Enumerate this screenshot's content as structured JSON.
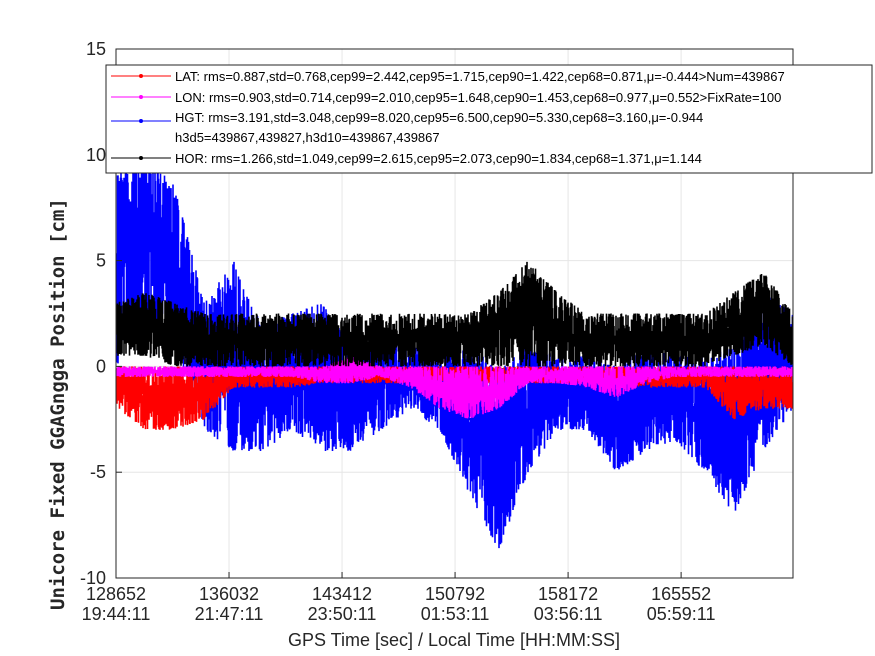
{
  "chart_data": {
    "type": "line",
    "xlabel": "GPS Time [sec] / Local Time [HH:MM:SS]",
    "ylabel": "Unicore Fixed GGAGngga Position [cm]",
    "xlim": [
      128652,
      172858
    ],
    "ylim": [
      -10,
      15
    ],
    "grid": true,
    "legend_placement": "top-left",
    "xticks": [
      {
        "value": 128652,
        "gps": "128652",
        "local": "19:44:11"
      },
      {
        "value": 136032,
        "gps": "136032",
        "local": "21:47:11"
      },
      {
        "value": 143412,
        "gps": "143412",
        "local": "23:50:11"
      },
      {
        "value": 150792,
        "gps": "150792",
        "local": "01:53:11"
      },
      {
        "value": 158172,
        "gps": "158172",
        "local": "03:56:11"
      },
      {
        "value": 165552,
        "gps": "165552",
        "local": "05:59:11"
      }
    ],
    "yticks": [
      "-10",
      "-5",
      "0",
      "5",
      "10",
      "15"
    ],
    "ytick_values": [
      -10,
      -5,
      0,
      5,
      10,
      15
    ],
    "x": [
      128652,
      130574,
      132496,
      134418,
      136340,
      138262,
      140184,
      142106,
      144028,
      145950,
      147872,
      149794,
      151716,
      153638,
      155560,
      157482,
      159404,
      161326,
      163248,
      165170,
      167092,
      169014,
      170936,
      172858
    ],
    "series": [
      {
        "name": "HGT",
        "color": "#0000ff",
        "min": [
          0,
          2,
          1,
          -3,
          -4,
          -4,
          -3,
          -4,
          -4,
          -3,
          -2,
          -3,
          -6,
          -8.7,
          -5,
          -3,
          -3,
          -5,
          -4,
          -3.5,
          -5,
          -7,
          -4,
          -2
        ],
        "max": [
          9,
          10,
          8.5,
          3,
          5,
          2,
          2.5,
          3,
          1,
          2,
          1,
          0.5,
          1,
          0,
          1,
          0.5,
          0.5,
          0,
          1,
          0.5,
          0.5,
          1,
          3.5,
          2.5
        ]
      },
      {
        "name": "LAT",
        "color": "#ff0000",
        "min": [
          -2,
          -3,
          -3,
          -2.5,
          -1,
          -1,
          -1,
          -0.8,
          -0.8,
          -0.8,
          -0.8,
          -0.8,
          -0.8,
          -0.8,
          -0.8,
          -0.8,
          -0.8,
          -0.8,
          -1,
          -1,
          -1,
          -2.5,
          -2,
          -2
        ],
        "max": [
          0,
          0,
          0,
          0,
          0,
          0,
          0,
          0,
          0,
          0,
          0,
          0,
          0,
          0,
          0,
          0,
          0,
          0,
          0,
          0,
          0,
          0,
          0,
          0
        ]
      },
      {
        "name": "LON",
        "color": "#ff00ff",
        "min": [
          -0.5,
          -0.5,
          -0.5,
          -0.5,
          -0.5,
          -0.5,
          -0.5,
          -0.8,
          -0.8,
          -0.5,
          -1,
          -2,
          -2.5,
          -2,
          -0.8,
          -0.8,
          -1,
          -1.5,
          -0.8,
          -0.5,
          -0.5,
          -0.5,
          -0.5,
          -0.5
        ],
        "max": [
          0,
          0,
          0,
          0,
          0,
          0,
          0,
          0,
          0.5,
          0,
          0,
          0,
          0,
          0,
          0,
          0,
          0,
          0,
          0,
          0,
          0,
          0,
          0,
          0
        ]
      },
      {
        "name": "HOR",
        "color": "#000000",
        "min": [
          0.5,
          0.5,
          0,
          0,
          0,
          0,
          0,
          0,
          0,
          0,
          0,
          0,
          0,
          0,
          0,
          0,
          0,
          0,
          0,
          0,
          0,
          0.5,
          1,
          0
        ],
        "max": [
          3,
          3.5,
          3,
          2.5,
          2.5,
          2.5,
          2.5,
          2.5,
          2.5,
          2.5,
          2.5,
          2.5,
          2.5,
          3.5,
          5,
          3.5,
          2.5,
          2.5,
          2.5,
          2.5,
          2.5,
          3.5,
          4.5,
          2.5
        ]
      }
    ],
    "legend": [
      {
        "series": "LAT",
        "color": "#ff0000",
        "text": "LAT: rms=0.887,std=0.768,cep99=2.442,cep95=1.715,cep90=1.422,cep68=0.871,μ=-0.444>Num=439867"
      },
      {
        "series": "LON",
        "color": "#ff00ff",
        "text": "LON: rms=0.903,std=0.714,cep99=2.010,cep95=1.648,cep90=1.453,cep68=0.977,μ=0.552>FixRate=100"
      },
      {
        "series": "HGT",
        "color": "#0000ff",
        "text": "HGT: rms=3.191,std=3.048,cep99=8.020,cep95=6.500,cep90=5.330,cep68=3.160,μ=-0.944",
        "text2": "h3d5=439867,439827,h3d10=439867,439867"
      },
      {
        "series": "HOR",
        "color": "#000000",
        "text": "HOR: rms=1.266,std=1.049,cep99=2.615,cep95=2.073,cep90=1.834,cep68=1.371,μ=1.144"
      }
    ]
  }
}
